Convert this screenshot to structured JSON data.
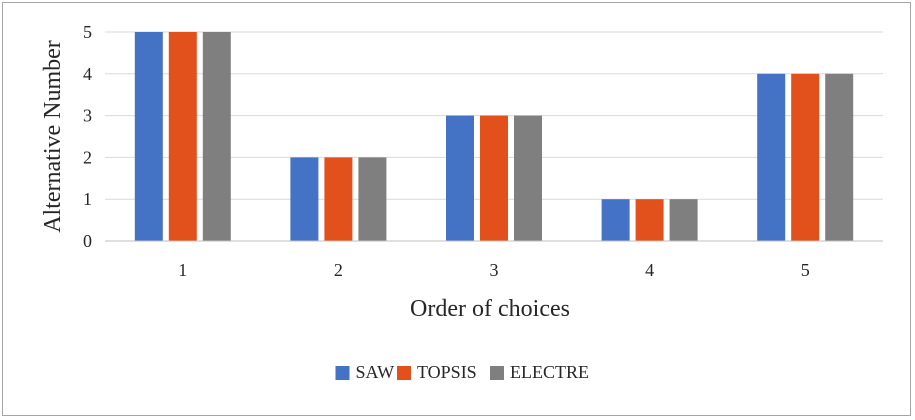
{
  "chart_data": {
    "type": "bar",
    "categories": [
      "1",
      "2",
      "3",
      "4",
      "5"
    ],
    "series": [
      {
        "name": "SAW",
        "values": [
          5,
          2,
          3,
          1,
          4
        ],
        "color": "#4472c4"
      },
      {
        "name": "TOPSIS",
        "values": [
          5,
          2,
          3,
          1,
          4
        ],
        "color": "#e2501b"
      },
      {
        "name": "ELECTRE",
        "values": [
          5,
          2,
          3,
          1,
          4
        ],
        "color": "#7f7f7f"
      }
    ],
    "title": "",
    "xlabel": "Order of choices",
    "ylabel": "Alternative Number",
    "ylim": [
      0,
      5
    ],
    "yticks": [
      "0",
      "1",
      "2",
      "3",
      "4",
      "5"
    ],
    "grid": true,
    "legend_position": "bottom"
  }
}
